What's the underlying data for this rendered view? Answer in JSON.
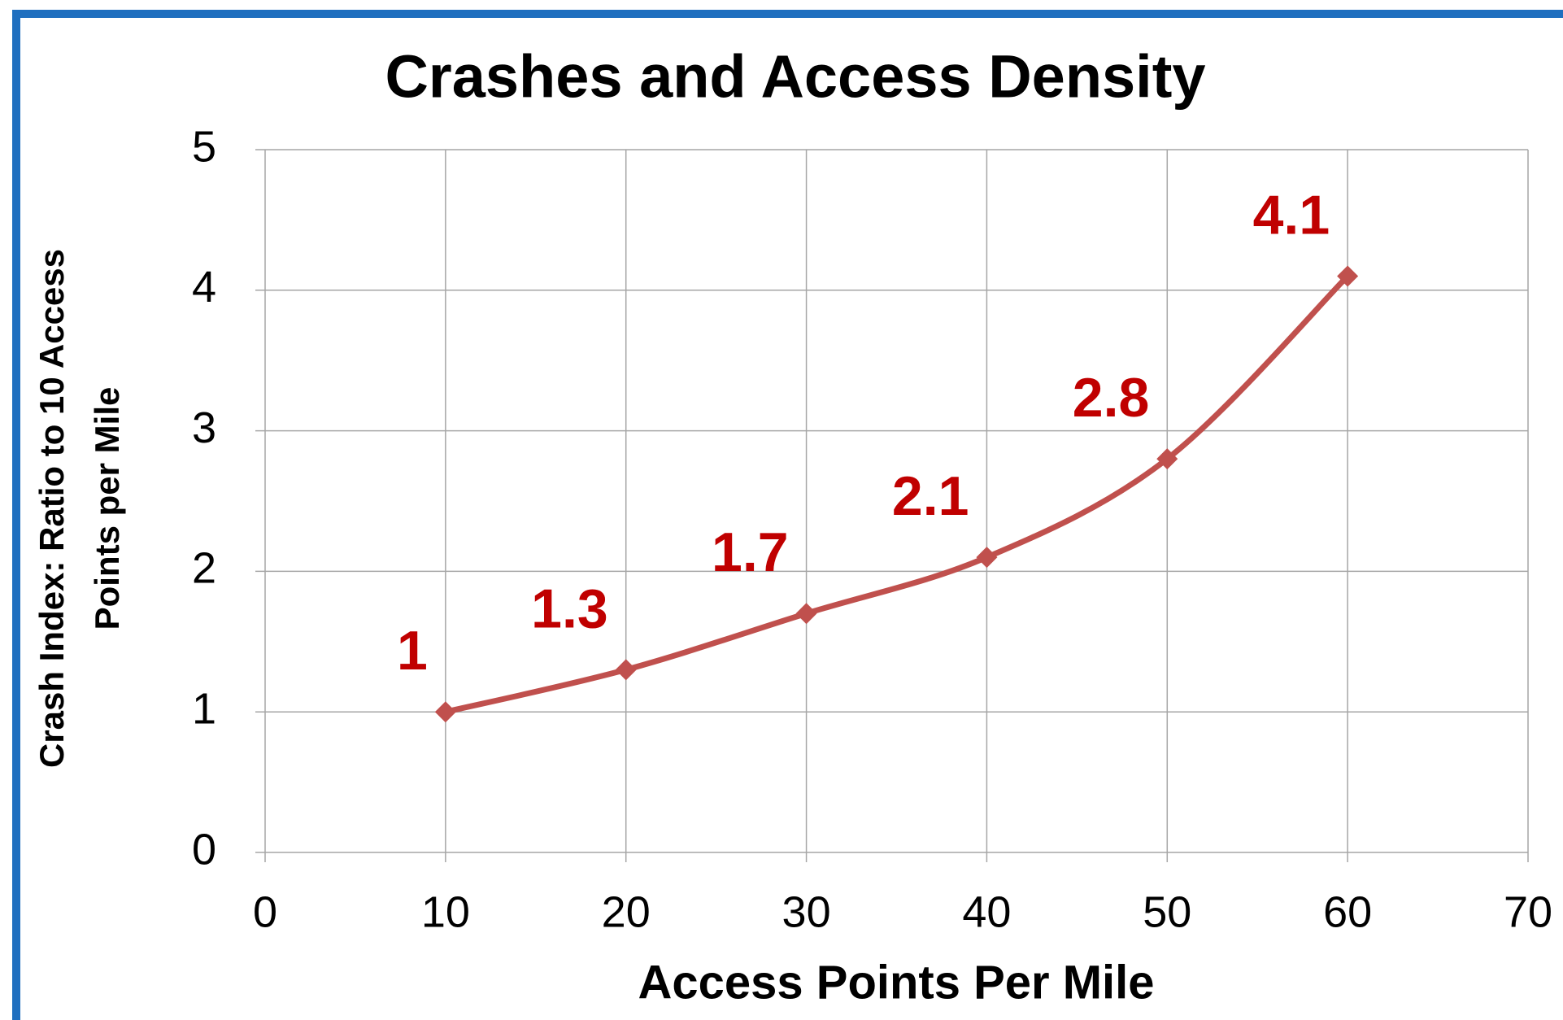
{
  "chart_data": {
    "type": "scatter",
    "title": "Crashes and Access Density",
    "x_label": "Access Points Per Mile",
    "y_label": [
      "Crash Index: Ratio to 10 Access",
      "Points per Mile"
    ],
    "x": [
      10,
      20,
      30,
      40,
      50,
      60
    ],
    "series": [
      {
        "name": "Crash Index",
        "color": "#c0504d",
        "label_color": "#c00000",
        "values": [
          1,
          1.3,
          1.7,
          2.1,
          2.8,
          4.1
        ]
      }
    ],
    "xlim": [
      0,
      70
    ],
    "xticks": [
      0,
      10,
      20,
      30,
      40,
      50,
      60,
      70
    ],
    "ylim": [
      0,
      5
    ],
    "yticks": [
      0,
      1,
      2,
      3,
      4,
      5
    ],
    "grid": true,
    "smooth": true,
    "marker": "diamond"
  }
}
